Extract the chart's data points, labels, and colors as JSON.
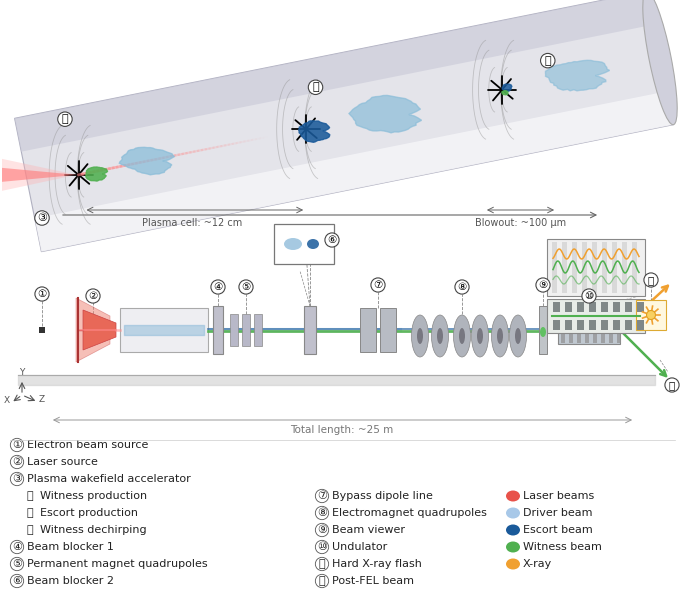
{
  "background_color": "#ffffff",
  "legend_items": [
    {
      "label": "Laser beams",
      "color": "#e8524a"
    },
    {
      "label": "Driver beam",
      "color": "#a8c8e8"
    },
    {
      "label": "Escort beam",
      "color": "#1a5a9a"
    },
    {
      "label": "Witness beam",
      "color": "#50b050"
    },
    {
      "label": "X-ray",
      "color": "#f0a030"
    }
  ],
  "left_legend": [
    [
      "①",
      "Electron beam source"
    ],
    [
      "②",
      "Laser source"
    ],
    [
      "③",
      "Plasma wakefield accelerator"
    ],
    [
      "Ⓐ",
      "Witness production"
    ],
    [
      "Ⓑ",
      "Escort production"
    ],
    [
      "Ⓒ",
      "Witness dechirping"
    ],
    [
      "④",
      "Beam blocker 1"
    ],
    [
      "⑤",
      "Permanent magnet quadrupoles"
    ],
    [
      "⑥",
      "Beam blocker 2"
    ]
  ],
  "mid_legend": [
    [
      "⑦",
      "Bypass dipole line"
    ],
    [
      "⑧",
      "Electromagnet quadrupoles"
    ],
    [
      "⑨",
      "Beam viewer"
    ],
    [
      "⑩",
      "Undulator"
    ],
    [
      "⑪",
      "Hard X-ray flash"
    ],
    [
      "⑫",
      "Post-FEL beam"
    ]
  ],
  "plasma_label1": "Plasma cell: ~12 cm",
  "plasma_label2": "Blowout: ~100 μm",
  "total_length_label": "Total length: ~25 m"
}
